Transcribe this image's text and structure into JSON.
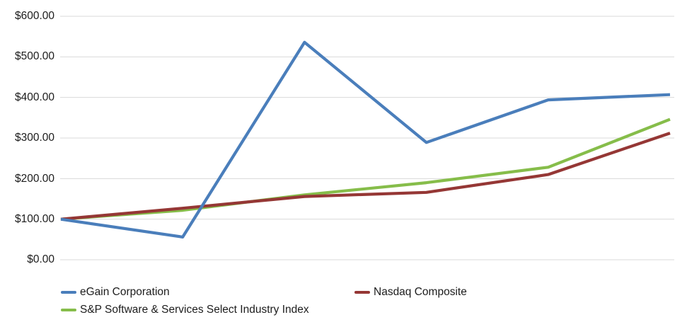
{
  "chart_data": {
    "type": "line",
    "title": "",
    "xlabel": "",
    "ylabel": "",
    "num_points": 6,
    "x_axis_labels_visible": false,
    "ylim": [
      0,
      600
    ],
    "ytick_step": 100,
    "yticks": [
      "$600.00",
      "$500.00",
      "$400.00",
      "$300.00",
      "$200.00",
      "$100.00",
      "$0.00"
    ],
    "grid": true,
    "gridline_color": "#d9d9d9",
    "legend_position": "bottom",
    "series": [
      {
        "name": "eGain Corporation",
        "color": "#4a7ebb",
        "values": [
          100,
          56,
          536,
          289,
          394,
          407
        ]
      },
      {
        "name": "Nasdaq Composite",
        "color": "#953735",
        "values": [
          100,
          127,
          156,
          166,
          210,
          312
        ]
      },
      {
        "name": "S&P Software & Services Select Industry Index",
        "color": "#86bd4a",
        "values": [
          100,
          122,
          160,
          190,
          228,
          346
        ]
      }
    ]
  }
}
